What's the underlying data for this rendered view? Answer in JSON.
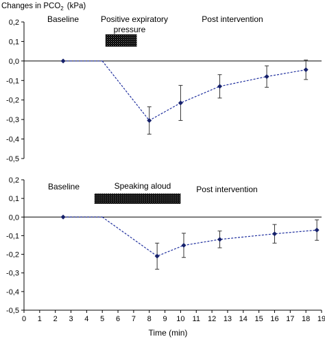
{
  "chart_data": [
    {
      "type": "line",
      "title": "Changes in PCO",
      "title_sub": "2",
      "title_unit": "(kPa)",
      "ylim": [
        -0.5,
        0.2
      ],
      "yticks": [
        "0,2",
        "0,1",
        "0,0",
        "-0,1",
        "-0,2",
        "-0,3",
        "-0,4",
        "-0,5"
      ],
      "xlim": [
        0,
        19
      ],
      "grid": false,
      "series": [
        {
          "points": [
            {
              "x": 2.5,
              "y": 0.0,
              "err": 0
            },
            {
              "x": 8.0,
              "y": -0.305,
              "err": 0.07
            },
            {
              "x": 10.0,
              "y": -0.215,
              "err": 0.09
            },
            {
              "x": 12.5,
              "y": -0.13,
              "err": 0.06
            },
            {
              "x": 15.5,
              "y": -0.08,
              "err": 0.055
            },
            {
              "x": 18.0,
              "y": -0.045,
              "err": 0.05
            }
          ],
          "color": "#1f2f9e"
        }
      ],
      "annotations": {
        "baseline": "Baseline",
        "intervention_line1": "Positive expiratory",
        "intervention_line2": "pressure",
        "post": "Post intervention"
      },
      "intervention_bar": {
        "start": 5.2,
        "end": 7.2
      }
    },
    {
      "type": "line",
      "xlabel": "Time (min)",
      "xticks": [
        "0",
        "1",
        "2",
        "3",
        "4",
        "5",
        "6",
        "7",
        "8",
        "9",
        "10",
        "11",
        "12",
        "13",
        "14",
        "15",
        "16",
        "17",
        "18",
        "19"
      ],
      "ylim": [
        -0.5,
        0.2
      ],
      "yticks": [
        "0,2",
        "0,1",
        "0,0",
        "-0,1",
        "-0,2",
        "-0,3",
        "-0,4",
        "-0,5"
      ],
      "xlim": [
        0,
        19
      ],
      "grid": false,
      "series": [
        {
          "points": [
            {
              "x": 2.5,
              "y": 0.0,
              "err": 0
            },
            {
              "x": 8.5,
              "y": -0.21,
              "err": 0.07
            },
            {
              "x": 10.2,
              "y": -0.152,
              "err": 0.065
            },
            {
              "x": 12.5,
              "y": -0.12,
              "err": 0.045
            },
            {
              "x": 16.0,
              "y": -0.09,
              "err": 0.05
            },
            {
              "x": 18.7,
              "y": -0.07,
              "err": 0.055
            }
          ],
          "color": "#1f2f9e"
        }
      ],
      "annotations": {
        "baseline": "Baseline",
        "intervention": "Speaking aloud",
        "post": "Post intervention"
      },
      "intervention_bar": {
        "start": 4.5,
        "end": 10.0
      }
    }
  ]
}
